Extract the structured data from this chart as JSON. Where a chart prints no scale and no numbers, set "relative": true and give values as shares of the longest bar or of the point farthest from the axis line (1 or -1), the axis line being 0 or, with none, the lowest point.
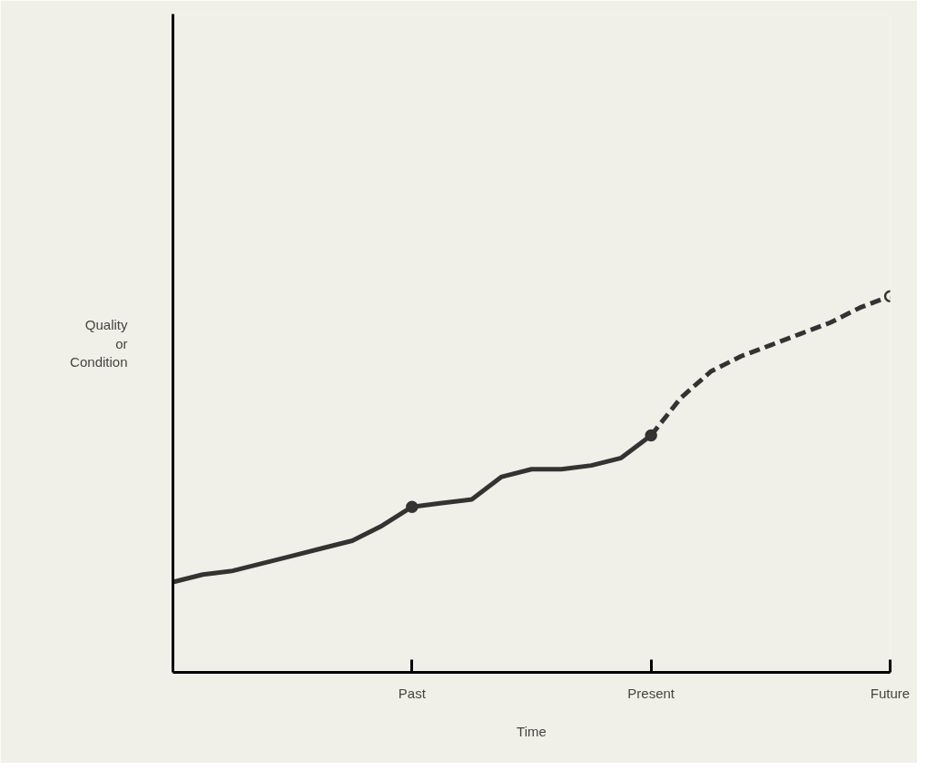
{
  "chart_data": {
    "type": "line",
    "relative": true,
    "xlabel": "Time",
    "ylabel": "Quality or Condition",
    "categories": [
      null,
      null,
      null,
      null,
      null,
      null,
      null,
      null,
      "Past",
      null,
      null,
      null,
      null,
      null,
      null,
      null,
      "Present",
      null,
      null,
      null,
      null,
      null,
      null,
      null,
      "Future"
    ],
    "series": [
      {
        "color": "#333333",
        "line_style": "solid",
        "values": [
          0.24,
          0.26,
          0.27,
          0.29,
          0.31,
          0.33,
          0.35,
          0.39,
          0.44,
          0.45,
          0.46,
          0.52,
          0.54,
          0.54,
          0.55,
          0.57,
          0.63,
          null,
          null,
          null,
          null,
          null,
          null,
          null,
          null
        ]
      },
      {
        "color": "#333333",
        "line_style": "dashed",
        "values": [
          null,
          null,
          null,
          null,
          null,
          null,
          null,
          null,
          null,
          null,
          null,
          null,
          null,
          null,
          null,
          null,
          0.63,
          0.73,
          0.8,
          0.84,
          0.87,
          0.9,
          0.93,
          0.97,
          1
        ]
      },
      {
        "type": "scatter",
        "color": "#333333",
        "marker": "circle",
        "values": [
          null,
          null,
          null,
          null,
          null,
          null,
          null,
          null,
          0.44,
          null,
          null,
          null,
          null,
          null,
          null,
          null,
          0.63,
          null,
          null,
          null,
          null,
          null,
          null,
          null,
          null
        ]
      },
      {
        "type": "scatter",
        "color": "#333333",
        "marker": "circle",
        "colors": [
          null,
          null,
          null,
          null,
          null,
          null,
          null,
          null,
          null,
          null,
          null,
          null,
          null,
          null,
          null,
          null,
          null,
          null,
          null,
          null,
          null,
          null,
          null,
          null,
          "#f0f0e8"
        ],
        "values": [
          null,
          null,
          null,
          null,
          null,
          null,
          null,
          null,
          null,
          null,
          null,
          null,
          null,
          null,
          null,
          null,
          null,
          null,
          null,
          null,
          null,
          null,
          null,
          null,
          1
        ]
      }
    ]
  }
}
